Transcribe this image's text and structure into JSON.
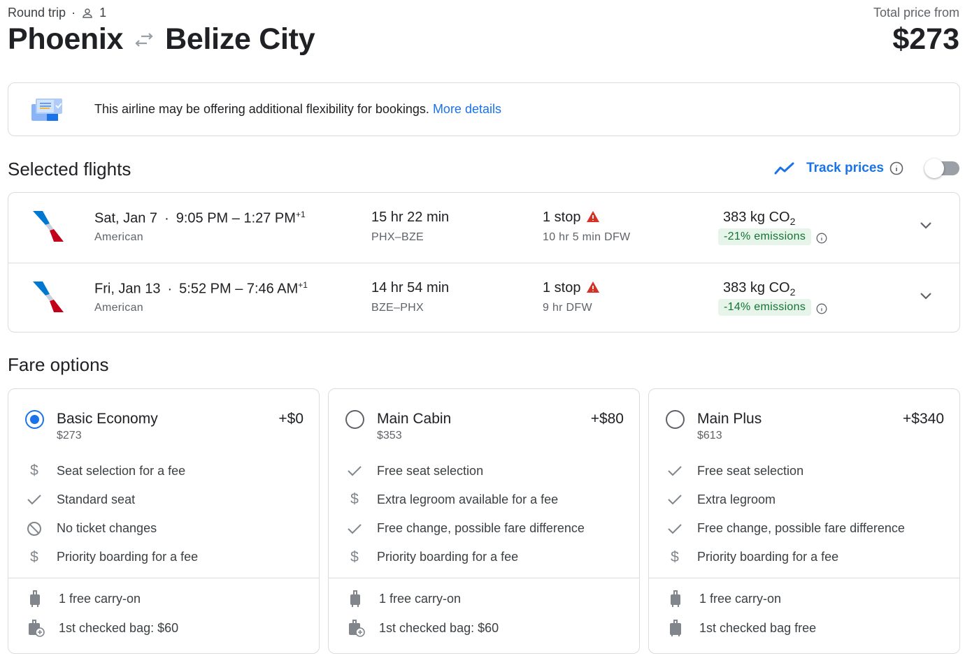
{
  "header": {
    "trip_type": "Round trip",
    "passengers": "1",
    "origin": "Phoenix",
    "destination": "Belize City",
    "total_label": "Total price from",
    "total_price": "$273"
  },
  "banner": {
    "text": "This airline may be offering additional flexibility for bookings.",
    "link": "More details"
  },
  "selected": {
    "heading": "Selected flights",
    "track_label": "Track prices",
    "track_enabled": false,
    "flights": [
      {
        "date": "Sat, Jan 7",
        "times": "9:05 PM – 1:27 PM",
        "day_offset": "+1",
        "airline": "American",
        "duration": "15 hr 22 min",
        "route": "PHX–BZE",
        "stops": "1 stop",
        "layover": "10 hr 5 min DFW",
        "co2": "383 kg CO",
        "co2_sub": "2",
        "emissions": "-21% emissions"
      },
      {
        "date": "Fri, Jan 13",
        "times": "5:52 PM – 7:46 AM",
        "day_offset": "+1",
        "airline": "American",
        "duration": "14 hr 54 min",
        "route": "BZE–PHX",
        "stops": "1 stop",
        "layover": "9 hr DFW",
        "co2": "383 kg CO",
        "co2_sub": "2",
        "emissions": "-14% emissions"
      }
    ]
  },
  "fares": {
    "heading": "Fare options",
    "options": [
      {
        "name": "Basic Economy",
        "delta": "+$0",
        "price": "$273",
        "selected": true,
        "features": [
          {
            "icon": "dollar",
            "text": "Seat selection for a fee"
          },
          {
            "icon": "check",
            "text": "Standard seat"
          },
          {
            "icon": "block",
            "text": "No ticket changes"
          },
          {
            "icon": "dollar",
            "text": "Priority boarding for a fee"
          }
        ],
        "bags": [
          {
            "icon": "carry-on",
            "text": "1 free carry-on"
          },
          {
            "icon": "checked-bag-fee",
            "text": "1st checked bag: $60"
          }
        ]
      },
      {
        "name": "Main Cabin",
        "delta": "+$80",
        "price": "$353",
        "selected": false,
        "features": [
          {
            "icon": "check",
            "text": "Free seat selection"
          },
          {
            "icon": "dollar",
            "text": "Extra legroom available for a fee"
          },
          {
            "icon": "check",
            "text": "Free change, possible fare difference"
          },
          {
            "icon": "dollar",
            "text": "Priority boarding for a fee"
          }
        ],
        "bags": [
          {
            "icon": "carry-on",
            "text": "1 free carry-on"
          },
          {
            "icon": "checked-bag-fee",
            "text": "1st checked bag: $60"
          }
        ]
      },
      {
        "name": "Main Plus",
        "delta": "+$340",
        "price": "$613",
        "selected": false,
        "features": [
          {
            "icon": "check",
            "text": "Free seat selection"
          },
          {
            "icon": "check",
            "text": "Extra legroom"
          },
          {
            "icon": "check",
            "text": "Free change, possible fare difference"
          },
          {
            "icon": "dollar",
            "text": "Priority boarding for a fee"
          }
        ],
        "bags": [
          {
            "icon": "carry-on",
            "text": "1 free carry-on"
          },
          {
            "icon": "checked-bag",
            "text": "1st checked bag free"
          }
        ]
      }
    ]
  },
  "colors": {
    "accent": "#1a73e8",
    "emissions_bg": "#e6f4ea",
    "emissions_text": "#137333",
    "warning": "#d93025"
  }
}
